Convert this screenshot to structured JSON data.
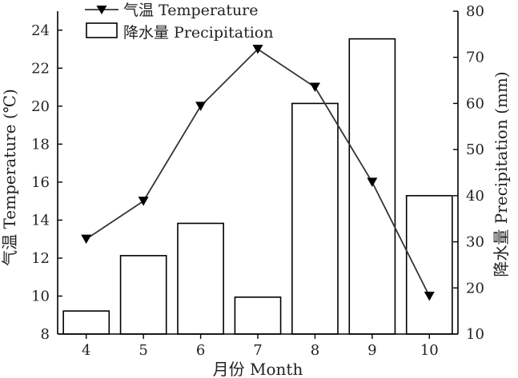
{
  "chart_data": {
    "type": "bar+line",
    "x": {
      "categories": [
        "4",
        "5",
        "6",
        "7",
        "8",
        "9",
        "10"
      ],
      "label": "月份 Month"
    },
    "series": [
      {
        "name": "降水量 Precipitation",
        "type": "bar",
        "axis": "right",
        "values": [
          15,
          27,
          34,
          18,
          60,
          74,
          40
        ]
      },
      {
        "name": "气温 Temperature",
        "type": "line",
        "axis": "left",
        "values": [
          13,
          15,
          20,
          23,
          21,
          16,
          10
        ]
      }
    ],
    "y_left": {
      "label": "气温 Temperature (℃)",
      "min": 8,
      "max": 25,
      "ticks": [
        8,
        10,
        12,
        14,
        16,
        18,
        20,
        22,
        24
      ]
    },
    "y_right": {
      "label": "降水量 Precipitation (mm)",
      "min": 10,
      "max": 80,
      "ticks": [
        10,
        20,
        30,
        40,
        50,
        60,
        70,
        80
      ]
    },
    "legend": {
      "position": "top-left"
    },
    "grid": false,
    "colors": {
      "bar_fill": "#ffffff",
      "bar_stroke": "#000000",
      "line": "#333333",
      "marker": "#000000"
    }
  }
}
